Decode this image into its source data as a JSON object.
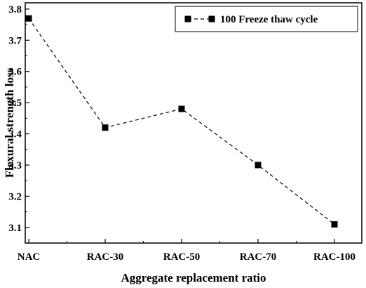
{
  "chart_data": {
    "type": "line",
    "categories": [
      "NAC",
      "RAC-30",
      "RAC-50",
      "RAC-70",
      "RAC-100"
    ],
    "series": [
      {
        "name": "100 Freeze thaw cycle",
        "values": [
          3.77,
          3.42,
          3.48,
          3.3,
          3.11
        ],
        "color": "#000000",
        "line_style": "dashed",
        "marker": "square"
      }
    ],
    "xlabel": "Aggregate replacement ratio",
    "ylabel": "Flexural strength loss",
    "ylim": [
      3.05,
      3.82
    ],
    "yticks": [
      3.1,
      3.2,
      3.3,
      3.4,
      3.5,
      3.6,
      3.7,
      3.8
    ],
    "ytick_labels": [
      "3.1",
      "3.2",
      "3.3",
      "3.4",
      "3.5",
      "3.6",
      "3.7",
      "3.8"
    ],
    "grid": false,
    "legend_position": "top-right"
  }
}
